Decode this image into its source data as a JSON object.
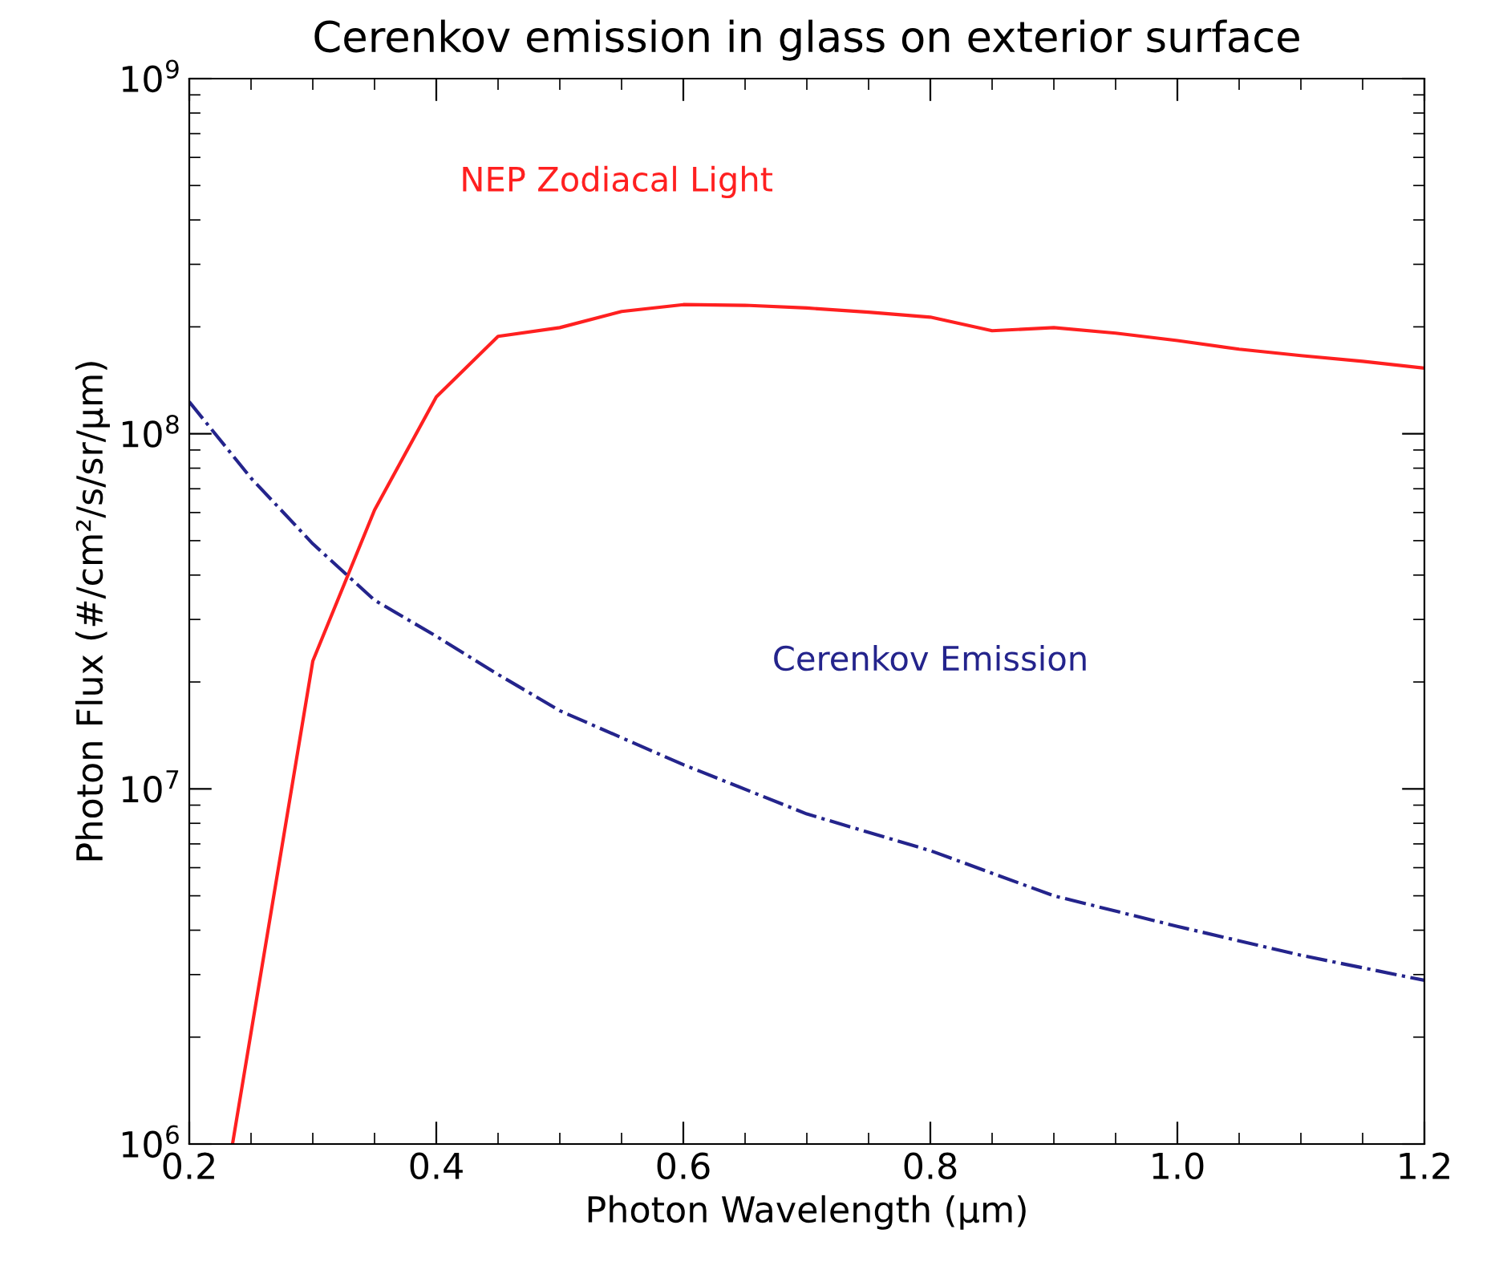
{
  "chart_data": {
    "type": "line",
    "title": "Cerenkov emission in glass on exterior surface",
    "xlabel": "Photon Wavelength (μm)",
    "ylabel": "Photon Flux (#/cm²/s/sr/μm)",
    "log": "y",
    "xlim": [
      0.2,
      1.2
    ],
    "ylim": [
      1000000,
      1000000000
    ],
    "xticks": [
      0.2,
      0.4,
      0.6,
      0.8,
      {
        "value": 1,
        "label": "1.0"
      },
      1.2
    ],
    "yticks": [
      {
        "value": 1000000,
        "label": "10$^{6}$"
      },
      {
        "value": 10000000,
        "label": "10$^{7}$"
      },
      {
        "value": 100000000,
        "label": "10$^{8}$"
      },
      {
        "value": 1000000000,
        "label": "10$^{9}$"
      }
    ],
    "grid": false,
    "legend": false,
    "series": [
      {
        "name": "NEP Zodiacal Light",
        "color": "#ff2020",
        "line_style": "solid",
        "x": [
          0.235,
          0.3,
          0.35,
          0.4,
          0.45,
          0.5,
          0.55,
          0.6,
          0.65,
          0.7,
          0.75,
          0.8,
          0.85,
          0.9,
          0.95,
          1.0,
          1.05,
          1.1,
          1.15,
          1.2
        ],
        "values": [
          1000000,
          22900000,
          61000000,
          127000000,
          188000000,
          199000000,
          221000000,
          231000000,
          230000000,
          226000000,
          220000000,
          213000000,
          195000000,
          199000000,
          192000000,
          183000000,
          173000000,
          166000000,
          160000000,
          153000000
        ]
      },
      {
        "name": "Cerenkov Emission",
        "color": "#24248c",
        "line_style": "dashdot",
        "x": [
          0.2,
          0.25,
          0.3,
          0.35,
          0.4,
          0.45,
          0.5,
          0.6,
          0.7,
          0.8,
          0.9,
          1.0,
          1.1,
          1.2
        ],
        "values": [
          123000000,
          75000000,
          49000000,
          34000000,
          26900000,
          21000000,
          16600000,
          11700000,
          8500000,
          6700000,
          5000000,
          4100000,
          3400000,
          2890000
        ]
      }
    ]
  }
}
